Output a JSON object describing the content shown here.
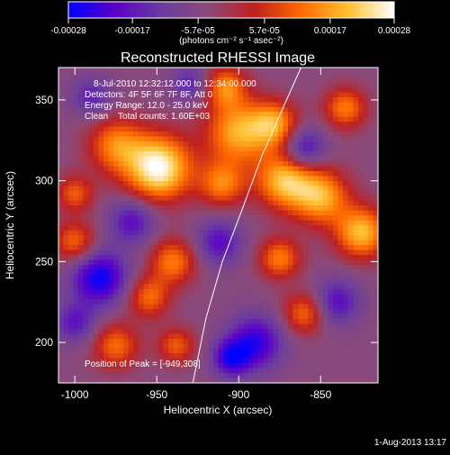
{
  "chart_data": {
    "type": "heatmap",
    "title": "Reconstructed RHESSI Image",
    "xlabel": "Heliocentric X (arcsec)",
    "ylabel": "Heliocentric Y (arcsec)",
    "xlim": [
      -1010,
      -815
    ],
    "ylim": [
      175,
      370
    ],
    "x_ticks": [
      -1000,
      -950,
      -900,
      -850
    ],
    "x_tick_labels": [
      "-1000",
      "-950",
      "-900",
      "-850"
    ],
    "y_ticks": [
      200,
      250,
      300,
      350
    ],
    "y_tick_labels": [
      "200",
      "250",
      "300",
      "350"
    ],
    "colorbar": {
      "range": [
        -0.00028,
        0.00028
      ],
      "ticks": [
        -0.00028,
        -0.00017,
        -5.7e-05,
        5.7e-05,
        0.00017,
        0.00028
      ],
      "tick_labels": [
        "-0.00028",
        "-0.00017",
        "-5.7e-05",
        "5.7e-05",
        "0.00017",
        "0.00028"
      ],
      "unit": "(photons cm⁻² s⁻¹ asec⁻²)",
      "colors": [
        "#0000ff",
        "#5a00c8",
        "#6a3c9e",
        "#8a4a7a",
        "#c0201e",
        "#ff6a00",
        "#ffc030",
        "#ffffff"
      ]
    },
    "annotations": [
      "8-Jul-2010 12:32:12.000 to 12:34:00.000",
      "Detectors: 4F 5F 6F 7F 8F, Att 0",
      "Energy Range: 12.0 - 25.0 keV",
      "Clean    Total counts: 1.60E+03"
    ],
    "peak_label": "Position of Peak = [-949,308]",
    "peak": [
      -949,
      308
    ],
    "blobs": [
      {
        "x": -949,
        "y": 308,
        "r": 14,
        "v": 1.0
      },
      {
        "x": -975,
        "y": 322,
        "r": 12,
        "v": 0.55
      },
      {
        "x": -900,
        "y": 330,
        "r": 14,
        "v": 0.7
      },
      {
        "x": -910,
        "y": 298,
        "r": 10,
        "v": 0.55
      },
      {
        "x": -878,
        "y": 335,
        "r": 10,
        "v": 0.6
      },
      {
        "x": -872,
        "y": 300,
        "r": 12,
        "v": 0.75
      },
      {
        "x": -850,
        "y": 290,
        "r": 12,
        "v": 0.7
      },
      {
        "x": -825,
        "y": 268,
        "r": 11,
        "v": 0.75
      },
      {
        "x": -835,
        "y": 345,
        "r": 9,
        "v": 0.55
      },
      {
        "x": -1000,
        "y": 262,
        "r": 9,
        "v": 0.5
      },
      {
        "x": -1000,
        "y": 292,
        "r": 8,
        "v": 0.45
      },
      {
        "x": -940,
        "y": 250,
        "r": 10,
        "v": 0.55
      },
      {
        "x": -955,
        "y": 228,
        "r": 9,
        "v": 0.5
      },
      {
        "x": -975,
        "y": 198,
        "r": 10,
        "v": 0.5
      },
      {
        "x": -938,
        "y": 198,
        "r": 8,
        "v": 0.45
      },
      {
        "x": -875,
        "y": 252,
        "r": 9,
        "v": 0.55
      },
      {
        "x": -860,
        "y": 218,
        "r": 9,
        "v": 0.5
      },
      {
        "x": -908,
        "y": 358,
        "r": 9,
        "v": 0.55
      },
      {
        "x": -985,
        "y": 240,
        "r": 12,
        "v": -0.7
      },
      {
        "x": -965,
        "y": 275,
        "r": 10,
        "v": -0.45
      },
      {
        "x": -912,
        "y": 262,
        "r": 10,
        "v": -0.45
      },
      {
        "x": -890,
        "y": 200,
        "r": 12,
        "v": -0.6
      },
      {
        "x": -905,
        "y": 190,
        "r": 8,
        "v": -0.55
      },
      {
        "x": -860,
        "y": 320,
        "r": 9,
        "v": -0.5
      },
      {
        "x": -840,
        "y": 225,
        "r": 10,
        "v": -0.45
      },
      {
        "x": -1000,
        "y": 212,
        "r": 9,
        "v": -0.4
      },
      {
        "x": -930,
        "y": 360,
        "r": 8,
        "v": -0.35
      },
      {
        "x": -990,
        "y": 352,
        "r": 9,
        "v": -0.35
      }
    ],
    "limb": [
      [
        -928,
        175
      ],
      [
        -920,
        215
      ],
      [
        -910,
        250
      ],
      [
        -898,
        282
      ],
      [
        -886,
        315
      ],
      [
        -873,
        345
      ],
      [
        -862,
        370
      ]
    ]
  },
  "footer": {
    "date": "1-Aug-2013 13:17"
  }
}
